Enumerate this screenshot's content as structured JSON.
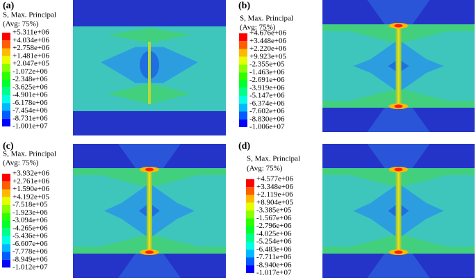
{
  "panels": [
    {
      "label": "(a)",
      "legend_title": "S, Max. Principal",
      "legend_subtitle": "(Avg: 75%)",
      "legend_values": [
        "+5.311e+06",
        "+4.034e+06",
        "+2.758e+06",
        "+1.481e+06",
        "+2.047e+05",
        "-1.072e+06",
        "-2.348e+06",
        "-3.625e+06",
        "-4.901e+06",
        "-6.178e+06",
        "-7.454e+06",
        "-8.731e+06",
        "-1.001e+07"
      ]
    },
    {
      "label": "(b)",
      "legend_title": "S, Max. Principal",
      "legend_subtitle": "(Avg: 75%)",
      "legend_values": [
        "+4.676e+06",
        "+3.448e+06",
        "+2.220e+06",
        "+9.923e+05",
        "-2.355e+05",
        "-1.463e+06",
        "-2.691e+06",
        "-3.919e+06",
        "-5.147e+06",
        "-6.374e+06",
        "-7.602e+06",
        "-8.830e+06",
        "-1.006e+07"
      ]
    },
    {
      "label": "(c)",
      "legend_title": "S, Max. Principal",
      "legend_subtitle": "(Avg: 75%)",
      "legend_values": [
        "+3.932e+06",
        "+2.761e+06",
        "+1.590e+06",
        "+4.192e+05",
        "-7.518e+05",
        "-1.923e+06",
        "-3.094e+06",
        "-4.265e+06",
        "-5.436e+06",
        "-6.607e+06",
        "-7.778e+06",
        "-8.949e+06",
        "-1.012e+07"
      ]
    },
    {
      "label": "(d)",
      "legend_title": "S, Max. Principal",
      "legend_subtitle": "(Avg: 75%)",
      "legend_values": [
        "+4.577e+06",
        "+3.348e+06",
        "+2.119e+06",
        "+8.904e+05",
        "-3.385e+05",
        "-1.567e+06",
        "-2.796e+06",
        "-4.025e+06",
        "-5.254e+06",
        "-6.483e+06",
        "-7.711e+06",
        "-8.940e+06",
        "-1.017e+07"
      ]
    }
  ]
}
